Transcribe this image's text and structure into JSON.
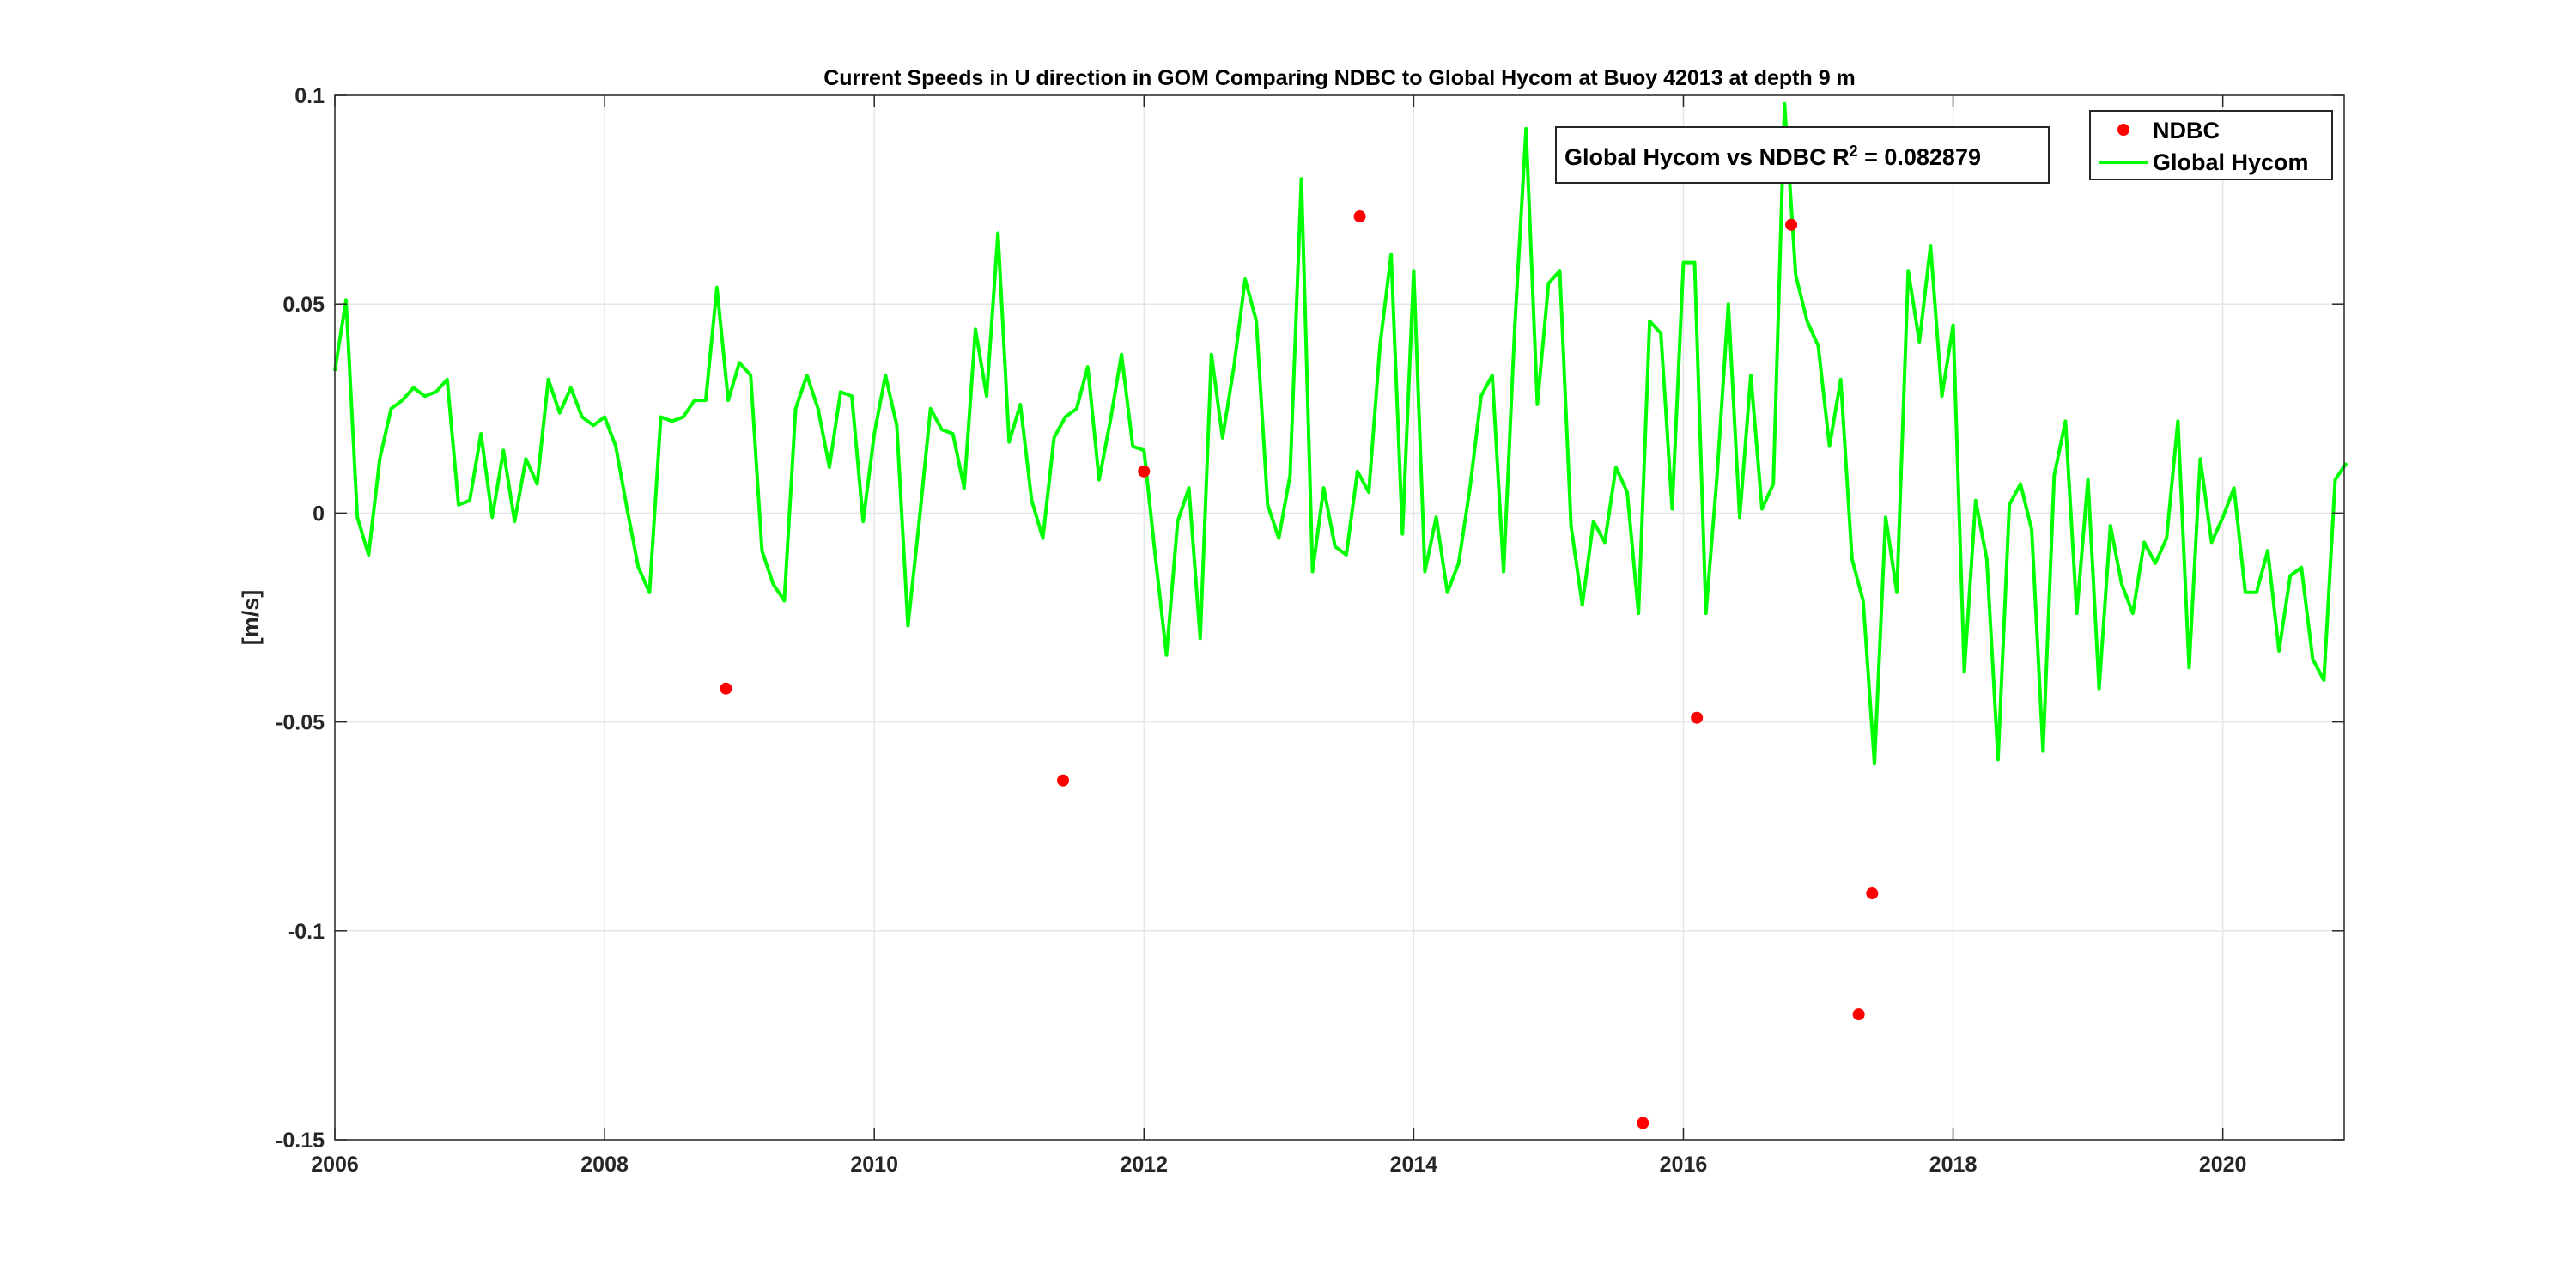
{
  "chart_data": {
    "type": "line",
    "title": "Current Speeds in U direction in GOM Comparing NDBC to Global Hycom at Buoy  42013  at depth  9 m",
    "xlabel": "",
    "ylabel": "[m/s]",
    "xlim": [
      2006,
      2020.9
    ],
    "ylim": [
      -0.15,
      0.1
    ],
    "x_ticks": [
      2006,
      2008,
      2010,
      2012,
      2014,
      2016,
      2018,
      2020
    ],
    "y_ticks": [
      -0.15,
      -0.1,
      -0.05,
      0,
      0.05,
      0.1
    ],
    "x_tick_labels": [
      "2006",
      "2008",
      "2010",
      "2012",
      "2014",
      "2016",
      "2018",
      "2020"
    ],
    "y_tick_labels": [
      "-0.15",
      "-0.1",
      "-0.05",
      "0",
      "0.05",
      "0.1"
    ],
    "grid": true,
    "legend_position": "top-right",
    "annotation": {
      "prefix": "Global Hycom vs NDBC R",
      "superscript": "2",
      "suffix": " = 0.082879"
    },
    "series": [
      {
        "name": "NDBC",
        "kind": "scatter",
        "color": "#ff0000",
        "x": [
          2008.9,
          2011.4,
          2012.0,
          2013.6,
          2015.7,
          2016.1,
          2016.8,
          2017.3,
          2017.4
        ],
        "y": [
          -0.042,
          -0.064,
          0.01,
          0.071,
          -0.146,
          -0.049,
          0.069,
          -0.12,
          -0.091
        ]
      },
      {
        "name": "Global Hycom",
        "kind": "line",
        "color": "#00ff00",
        "x": [
          2006.0,
          2006.083,
          2006.167,
          2006.25,
          2006.333,
          2006.417,
          2006.5,
          2006.583,
          2006.667,
          2006.75,
          2006.833,
          2006.917,
          2007.0,
          2007.083,
          2007.167,
          2007.25,
          2007.333,
          2007.417,
          2007.5,
          2007.583,
          2007.667,
          2007.75,
          2007.833,
          2007.917,
          2008.0,
          2008.083,
          2008.167,
          2008.25,
          2008.333,
          2008.417,
          2008.5,
          2008.583,
          2008.667,
          2008.75,
          2008.833,
          2008.917,
          2009.0,
          2009.083,
          2009.167,
          2009.25,
          2009.333,
          2009.417,
          2009.5,
          2009.583,
          2009.667,
          2009.75,
          2009.833,
          2009.917,
          2010.0,
          2010.083,
          2010.167,
          2010.25,
          2010.333,
          2010.417,
          2010.5,
          2010.583,
          2010.667,
          2010.75,
          2010.833,
          2010.917,
          2011.0,
          2011.083,
          2011.167,
          2011.25,
          2011.333,
          2011.417,
          2011.5,
          2011.583,
          2011.667,
          2011.75,
          2011.833,
          2011.917,
          2012.0,
          2012.083,
          2012.167,
          2012.25,
          2012.333,
          2012.417,
          2012.5,
          2012.583,
          2012.667,
          2012.75,
          2012.833,
          2012.917,
          2013.0,
          2013.083,
          2013.167,
          2013.25,
          2013.333,
          2013.417,
          2013.5,
          2013.583,
          2013.667,
          2013.75,
          2013.833,
          2013.917,
          2014.0,
          2014.083,
          2014.167,
          2014.25,
          2014.333,
          2014.417,
          2014.5,
          2014.583,
          2014.667,
          2014.75,
          2014.833,
          2014.917,
          2015.0,
          2015.083,
          2015.167,
          2015.25,
          2015.333,
          2015.417,
          2015.5,
          2015.583,
          2015.667,
          2015.75,
          2015.833,
          2015.917,
          2016.0,
          2016.083,
          2016.167,
          2016.25,
          2016.333,
          2016.417,
          2016.5,
          2016.583,
          2016.667,
          2016.75,
          2016.833,
          2016.917,
          2017.0,
          2017.083,
          2017.167,
          2017.25,
          2017.333,
          2017.417,
          2017.5,
          2017.583,
          2017.667,
          2017.75,
          2017.833,
          2017.917,
          2018.0,
          2018.083,
          2018.167,
          2018.25,
          2018.333,
          2018.417,
          2018.5,
          2018.583,
          2018.667,
          2018.75,
          2018.833,
          2018.917,
          2019.0,
          2019.083,
          2019.167,
          2019.25,
          2019.333,
          2019.417,
          2019.5,
          2019.583,
          2019.667,
          2019.75,
          2019.833,
          2019.917,
          2020.0,
          2020.083,
          2020.167,
          2020.25,
          2020.333,
          2020.417,
          2020.5,
          2020.583,
          2020.667,
          2020.75,
          2020.833,
          2020.917
        ],
        "y": [
          0.034,
          0.051,
          -0.001,
          -0.01,
          0.013,
          0.025,
          0.027,
          0.03,
          0.028,
          0.029,
          0.032,
          0.002,
          0.003,
          0.019,
          -0.001,
          0.015,
          -0.002,
          0.013,
          0.007,
          0.032,
          0.024,
          0.03,
          0.023,
          0.021,
          0.023,
          0.016,
          0.001,
          -0.013,
          -0.019,
          0.023,
          0.022,
          0.023,
          0.027,
          0.027,
          0.054,
          0.027,
          0.036,
          0.033,
          -0.009,
          -0.017,
          -0.021,
          0.025,
          0.033,
          0.025,
          0.011,
          0.029,
          0.028,
          -0.002,
          0.019,
          0.033,
          0.021,
          -0.027,
          -0.002,
          0.025,
          0.02,
          0.019,
          0.006,
          0.044,
          0.028,
          0.067,
          0.017,
          0.026,
          0.003,
          -0.006,
          0.018,
          0.023,
          0.025,
          0.035,
          0.008,
          0.022,
          0.038,
          0.016,
          0.015,
          -0.01,
          -0.034,
          -0.002,
          0.006,
          -0.03,
          0.038,
          0.018,
          0.035,
          0.056,
          0.046,
          0.002,
          -0.006,
          0.009,
          0.08,
          -0.014,
          0.006,
          -0.008,
          -0.01,
          0.01,
          0.005,
          0.04,
          0.062,
          -0.005,
          0.058,
          -0.014,
          -0.001,
          -0.019,
          -0.012,
          0.006,
          0.028,
          0.033,
          -0.014,
          0.045,
          0.092,
          0.026,
          0.055,
          0.058,
          -0.003,
          -0.022,
          -0.002,
          -0.007,
          0.011,
          0.005,
          -0.024,
          0.046,
          0.043,
          0.001,
          0.06,
          0.06,
          -0.024,
          0.009,
          0.05,
          -0.001,
          0.033,
          0.001,
          0.007,
          0.098,
          0.057,
          0.046,
          0.04,
          0.016,
          0.032,
          -0.011,
          -0.021,
          -0.06,
          -0.001,
          -0.019,
          0.058,
          0.041,
          0.064,
          0.028,
          0.045,
          -0.038,
          0.003,
          -0.011,
          -0.059,
          0.002,
          0.007,
          -0.004,
          -0.057,
          0.009,
          0.022,
          -0.024,
          0.008,
          -0.042,
          -0.003,
          -0.017,
          -0.024,
          -0.007,
          -0.012,
          -0.006,
          0.022,
          -0.037,
          0.013,
          -0.007,
          -0.001,
          0.006,
          -0.019,
          -0.019,
          -0.009,
          -0.033,
          -0.015,
          -0.013,
          -0.035,
          -0.04,
          0.008,
          0.012
        ]
      }
    ]
  },
  "colors": {
    "axis": "#262626",
    "grid": "#e6e6e6",
    "ndbc": "#ff0000",
    "hycom": "#00ff00"
  }
}
